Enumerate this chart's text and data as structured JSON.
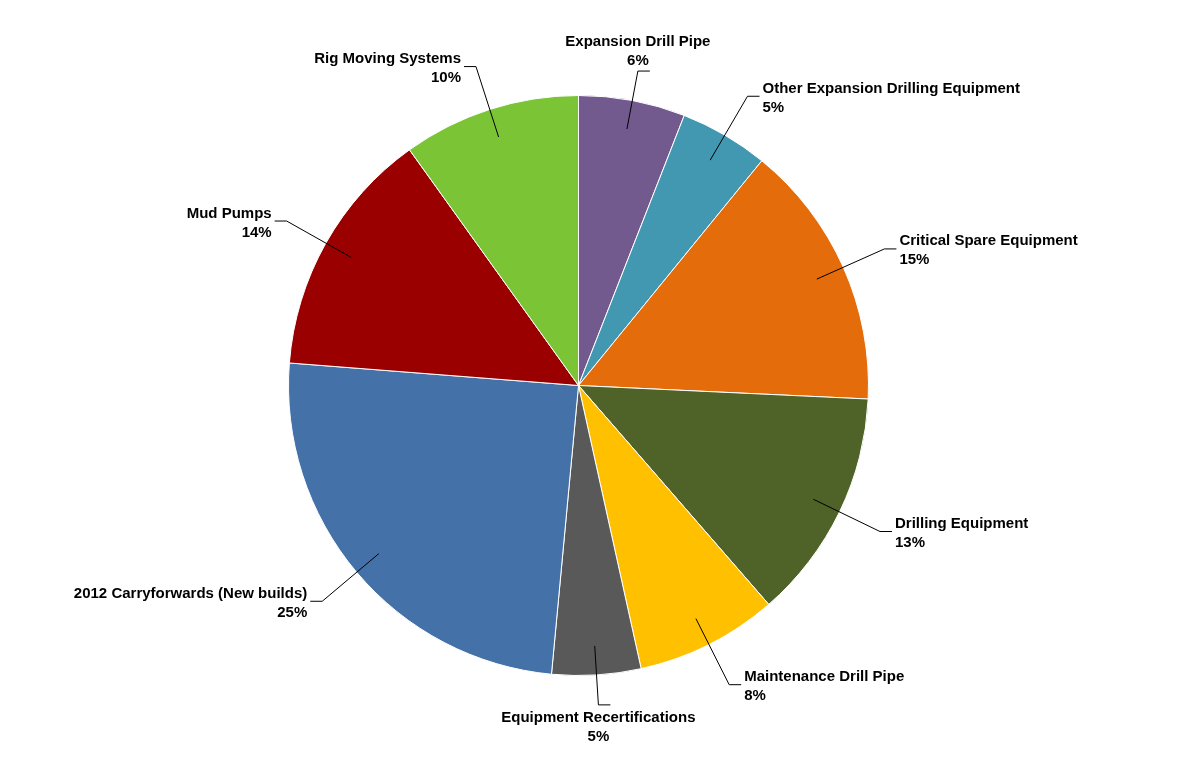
{
  "chart_data": {
    "type": "pie",
    "categories": [
      "Expansion Drill Pipe",
      "Other Expansion Drilling Equipment",
      "Critical Spare Equipment",
      "Drilling Equipment",
      "Maintenance Drill Pipe",
      "Equipment Recertifications",
      "2012 Carryforwards (New builds)",
      "Mud Pumps",
      "Rig Moving Systems"
    ],
    "values": [
      6,
      5,
      15,
      13,
      8,
      5,
      25,
      14,
      10
    ],
    "colors": [
      "#725a8e",
      "#4298b0",
      "#e46c0a",
      "#4f6228",
      "#ffc000",
      "#595959",
      "#4472a8",
      "#9a0000",
      "#7ac436"
    ],
    "value_labels": [
      "6%",
      "5%",
      "15%",
      "13%",
      "8%",
      "5%",
      "25%",
      "14%",
      "10%"
    ],
    "legend": false
  }
}
